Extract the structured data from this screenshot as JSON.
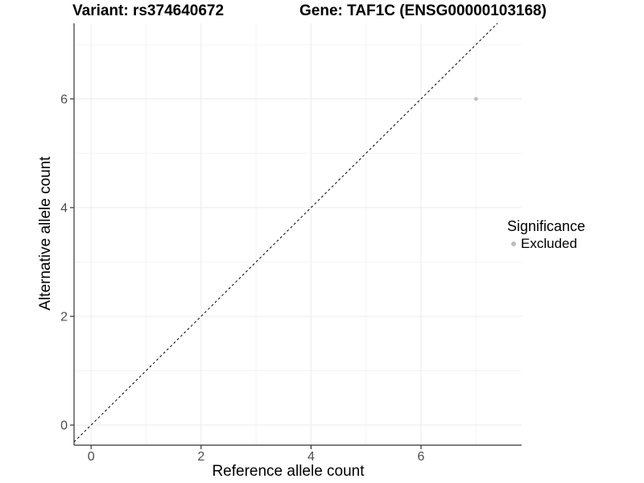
{
  "titles": {
    "variant": "Variant: rs374640672",
    "gene": "Gene: TAF1C (ENSG00000103168)"
  },
  "legend": {
    "title": "Significance",
    "items": [
      {
        "label": "Excluded",
        "color": "#bdbdbd"
      }
    ]
  },
  "chart_data": {
    "type": "scatter",
    "title": "Variant: rs374640672 | Gene: TAF1C (ENSG00000103168)",
    "xlabel": "Reference allele count",
    "ylabel": "Alternative allele count",
    "xlim": [
      -0.31,
      7.83
    ],
    "ylim": [
      -0.37,
      7.39
    ],
    "x_ticks": [
      0,
      2,
      4,
      6
    ],
    "y_ticks": [
      0,
      2,
      4,
      6
    ],
    "x_minor_ticks": [
      1,
      3,
      5,
      7
    ],
    "y_minor_ticks": [
      1,
      3,
      5,
      7
    ],
    "grid": true,
    "legend_position": "right",
    "series": [
      {
        "name": "Excluded",
        "color": "#bdbdbd",
        "points": [
          {
            "x": 7,
            "y": 6
          }
        ]
      }
    ],
    "reference_line": {
      "equation": "y = x",
      "style": "dashed",
      "color": "#000000"
    }
  },
  "colors": {
    "point": "#bdbdbd",
    "grid_major": "#ebebeb",
    "grid_minor": "#f4f4f4",
    "axis_line": "#333333",
    "tick_text": "#4d4d4d",
    "dashed_line": "#000000"
  }
}
